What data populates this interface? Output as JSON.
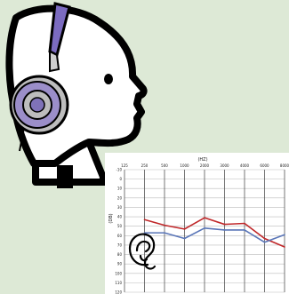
{
  "head_illustration": {
    "icons": [
      "head-profile-icon",
      "headphones-icon"
    ],
    "colors": {
      "background": "#dde9d6",
      "outline": "#000000",
      "cup_purple": "#9b8ec9",
      "band_purple": "#7b6bc0",
      "cup_gray": "#bdbdbd",
      "cup_center_purple": "#7f72b8"
    }
  },
  "audiogram": {
    "x_unit": "(HZ)",
    "y_unit": "(DB)",
    "ear_icon": "ear-icon"
  },
  "chart_data": {
    "type": "line",
    "xlabel": "(HZ)",
    "ylabel": "(DB)",
    "x": [
      "125",
      "250",
      "500",
      "1000",
      "2000",
      "3000",
      "4000",
      "6000",
      "8000"
    ],
    "ylim": [
      120,
      -10
    ],
    "y_ticks": [
      "-10",
      "0",
      "10",
      "20",
      "30",
      "40",
      "50",
      "60",
      "70",
      "80",
      "90",
      "100",
      "110",
      "120"
    ],
    "grid": true,
    "series": [
      {
        "color": "#c0282a",
        "values": [
          null,
          43,
          49,
          53,
          41,
          48,
          47,
          63,
          72
        ]
      },
      {
        "color": "#5a76b8",
        "values": [
          null,
          57,
          57,
          63,
          52,
          54,
          54,
          67,
          59
        ]
      }
    ]
  }
}
